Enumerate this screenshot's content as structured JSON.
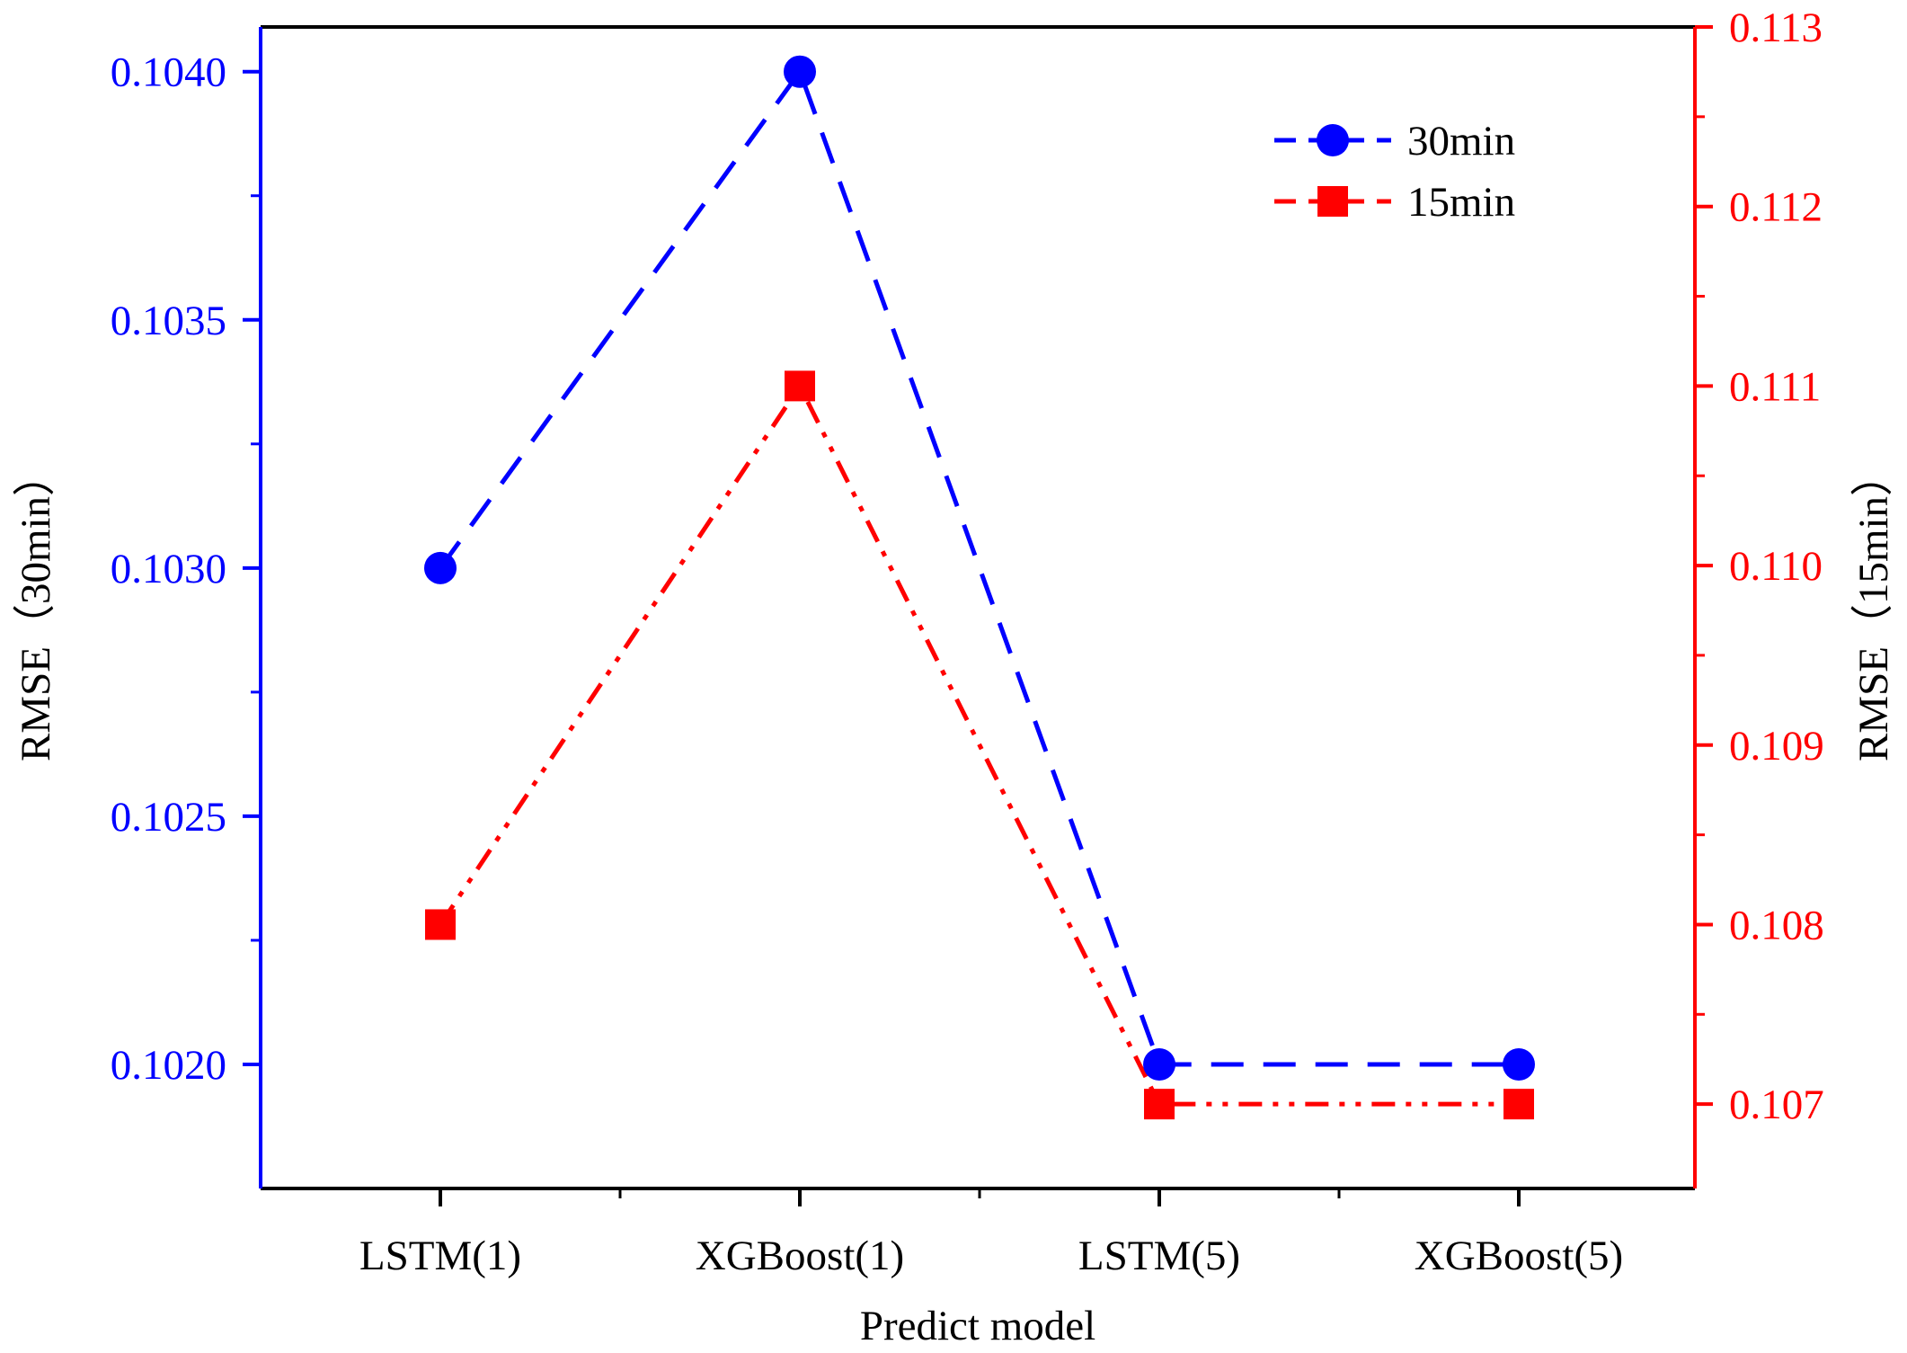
{
  "chart_data": {
    "type": "line",
    "title": "",
    "xlabel": "Predict model",
    "categories": [
      "LSTM(1)",
      "XGBoost(1)",
      "LSTM(5)",
      "XGBoost(5)"
    ],
    "y_left": {
      "label": "RMSE（30min）",
      "lim": [
        0.10175,
        0.10409
      ],
      "ticks": [
        "0.1020",
        "0.1025",
        "0.1030",
        "0.1035",
        "0.1040"
      ],
      "tick_values": [
        0.102,
        0.1025,
        0.103,
        0.1035,
        0.104
      ],
      "color": "#0000ff"
    },
    "y_right": {
      "label": "RMSE（15min）",
      "lim": [
        0.10653,
        0.113
      ],
      "ticks": [
        "0.107",
        "0.108",
        "0.109",
        "0.110",
        "0.111",
        "0.112",
        "0.113"
      ],
      "tick_values": [
        0.107,
        0.108,
        0.109,
        0.11,
        0.111,
        0.112,
        0.113
      ],
      "color": "#ff0000"
    },
    "series": [
      {
        "name": "30min",
        "axis": "left",
        "values": [
          0.103,
          0.104,
          0.102,
          0.102
        ],
        "color": "#0000ff",
        "marker": "circle",
        "line": "dash"
      },
      {
        "name": "15min",
        "axis": "right",
        "values": [
          0.108,
          0.111,
          0.107,
          0.107
        ],
        "color": "#ff0000",
        "marker": "square",
        "line": "dash-dot-dot"
      }
    ],
    "legend_position": "top-right",
    "grid": false
  }
}
